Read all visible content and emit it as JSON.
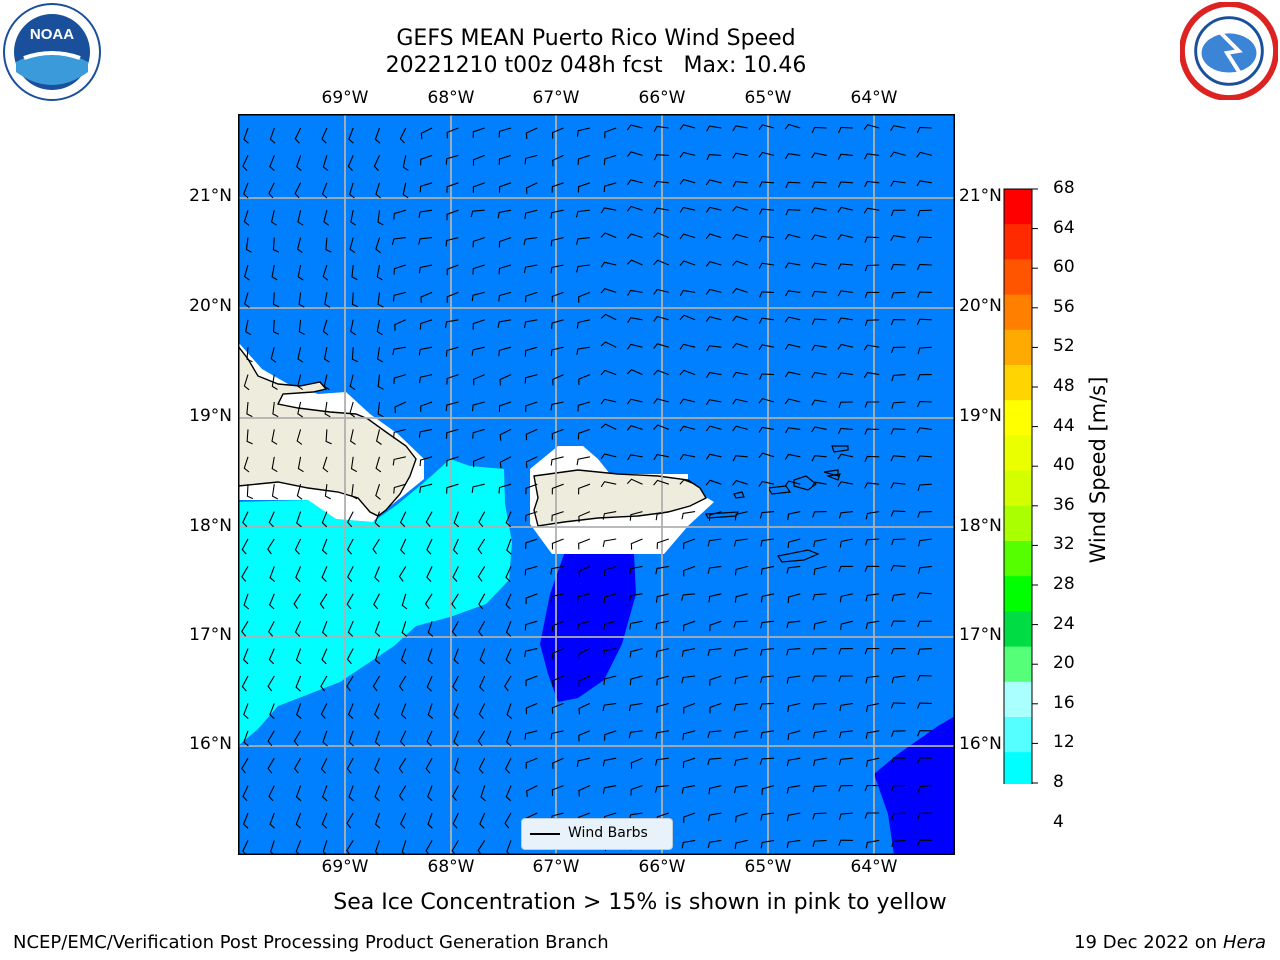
{
  "title": {
    "line1": "GEFS MEAN Puerto Rico Wind Speed",
    "line2": "20221210 t00z 048h fcst   Max: 10.46"
  },
  "axes": {
    "lon_labels": [
      "69°W",
      "68°W",
      "67°W",
      "66°W",
      "65°W",
      "64°W"
    ],
    "lat_labels": [
      "21°N",
      "20°N",
      "19°N",
      "18°N",
      "17°N",
      "16°N"
    ]
  },
  "legend": {
    "label": "Wind Barbs"
  },
  "colorbar": {
    "label": "Wind Speed [m/s]",
    "ticks": [
      "68",
      "64",
      "60",
      "56",
      "52",
      "48",
      "44",
      "40",
      "36",
      "32",
      "28",
      "24",
      "20",
      "16",
      "12",
      "8",
      "4"
    ],
    "colors": [
      "#ff0000",
      "#ff2a00",
      "#ff5500",
      "#ff8000",
      "#ffaa00",
      "#ffd400",
      "#ffff00",
      "#eaff00",
      "#d4ff00",
      "#aaff00",
      "#55ff00",
      "#00ff00",
      "#00dd44",
      "#55ff77",
      "#aaffff",
      "#55ffff",
      "#00ffff",
      "#0080ff"
    ],
    "extend_color": "#0000ff"
  },
  "footnote": "Sea Ice Concentration > 15% is shown in pink to yellow",
  "credit": {
    "left": "NCEP/EMC/Verification Post Processing Product Generation Branch",
    "right_date": "19 Dec 2022 on",
    "right_host": "Hera"
  },
  "logos": {
    "left": "noaa-logo",
    "right": "nws-logo"
  }
}
